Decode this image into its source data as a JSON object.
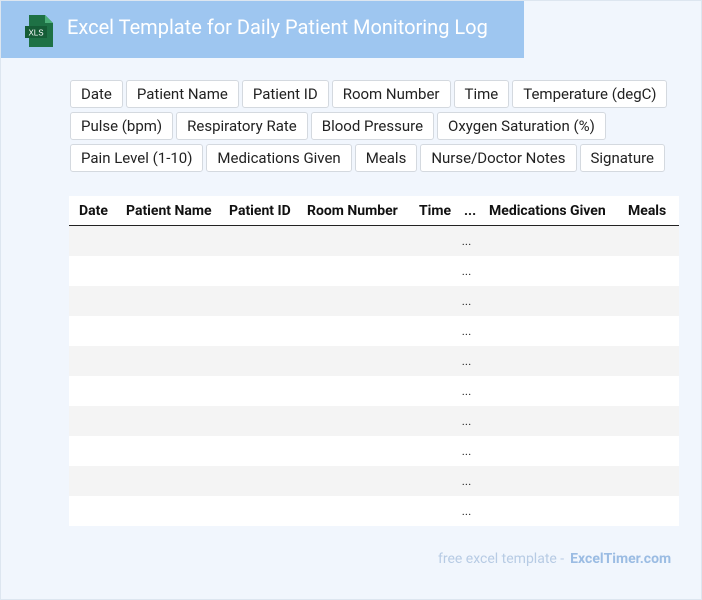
{
  "header": {
    "icon_label": "XLS",
    "title": "Excel Template for Daily Patient Monitoring Log"
  },
  "tags": [
    [
      "Date",
      "Patient Name",
      "Patient ID",
      "Room Number",
      "Time",
      "Temperature (degC)"
    ],
    [
      "Pulse (bpm)",
      "Respiratory Rate",
      "Blood Pressure",
      "Oxygen Saturation (%)"
    ],
    [
      "Pain Level (1-10)",
      "Medications Given",
      "Meals",
      "Nurse/Doctor Notes",
      "Signature"
    ]
  ],
  "table": {
    "columns": [
      "Date",
      "Patient Name",
      "Patient ID",
      "Room Number",
      "Time",
      "...",
      "Medications Given",
      "Meals"
    ],
    "rows": [
      "...",
      "...",
      "...",
      "...",
      "...",
      "...",
      "...",
      "...",
      "...",
      "..."
    ]
  },
  "footer": {
    "text": "free excel template -",
    "site": "ExcelTimer.com"
  }
}
